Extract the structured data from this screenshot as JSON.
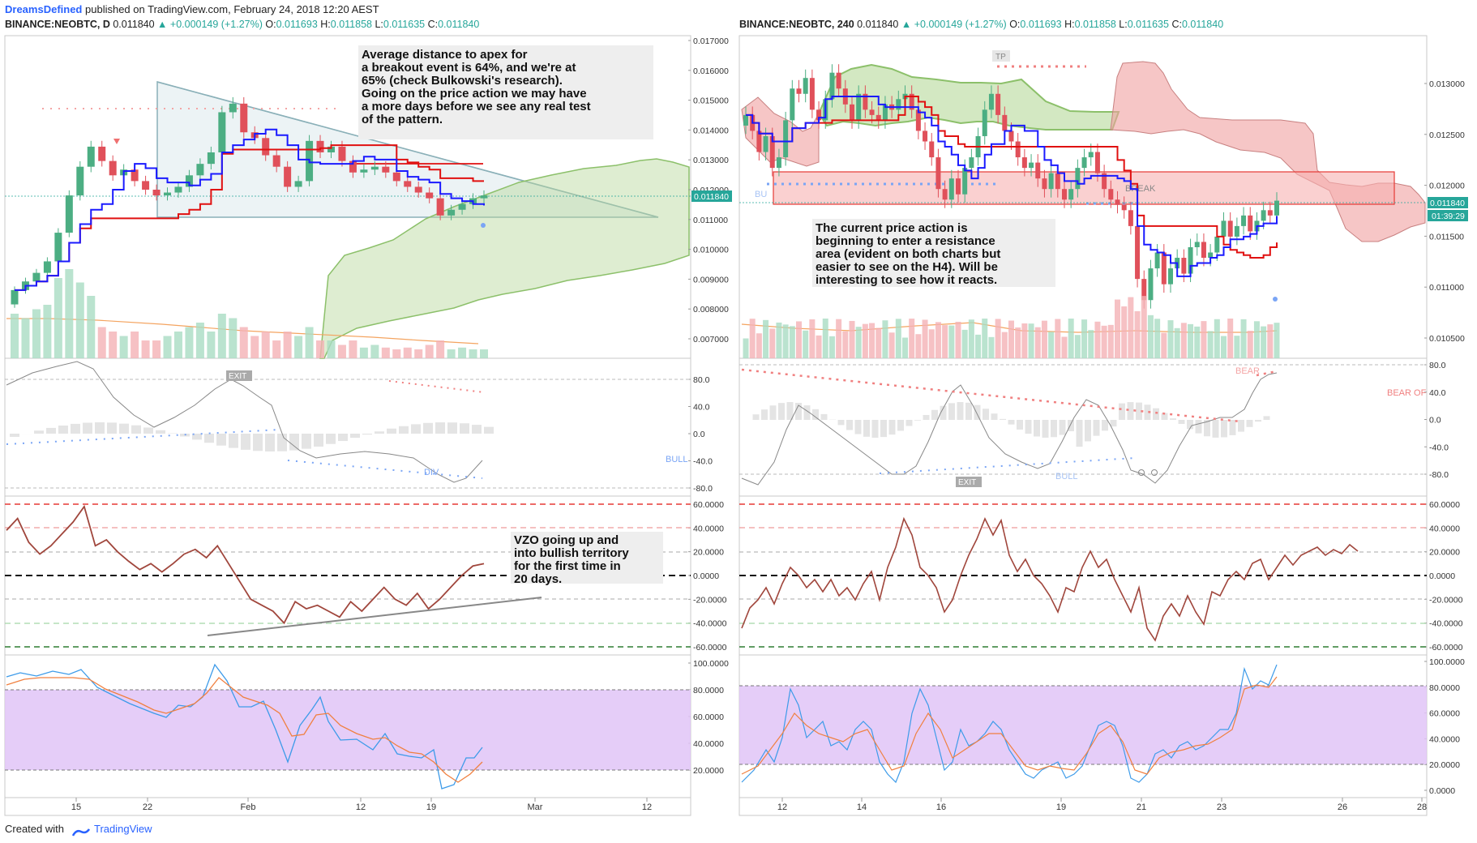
{
  "header": {
    "brand": "DreamsDefined",
    "published": "published on TradingView.com, February 24, 2018 12:20 AEST"
  },
  "left_chart": {
    "symbol": "BINANCE:NEOBTC, D",
    "last": "0.011840",
    "change": "▲ +0.000149 (+1.27%)",
    "o_label": "O:",
    "o": "0.011693",
    "h_label": "H:",
    "h": "0.011858",
    "l_label": "L:",
    "l": "0.011635",
    "c_label": "C:",
    "c": "0.011840",
    "price_ticks": [
      "0.017000",
      "0.016000",
      "0.015000",
      "0.014000",
      "0.013000",
      "0.012000",
      "0.011000",
      "0.010000",
      "0.009000",
      "0.008000",
      "0.007000"
    ],
    "price_label": "0.011840",
    "osc_ticks": [
      "80.0",
      "40.0",
      "0.0",
      "-40.0",
      "-80.0"
    ],
    "osc_labels": {
      "exit": "EXIT",
      "bull": "BULL",
      "div": "DIV"
    },
    "vzo_ticks": [
      "60.0000",
      "40.0000",
      "20.0000",
      "0.0000",
      "-20.0000",
      "-40.0000",
      "-60.0000"
    ],
    "rsi_ticks": [
      "100.0000",
      "80.0000",
      "60.0000",
      "40.0000",
      "20.0000"
    ],
    "x_ticks": [
      "15",
      "22",
      "Feb",
      "12",
      "19",
      "Mar",
      "12"
    ],
    "note1": [
      "Average distance to apex for",
      "a breakout event is 64%, and we're at",
      "65% (check Bulkowski's research).",
      "",
      "Going on the price action we may have",
      "a more days before we see any real test",
      "of the pattern."
    ],
    "note2": [
      "VZO going up and",
      "into bullish territory",
      "for the first time in",
      "20 days."
    ]
  },
  "right_chart": {
    "symbol": "BINANCE:NEOBTC, 240",
    "last": "0.011840",
    "change": "▲ +0.000149 (+1.27%)",
    "o_label": "O:",
    "o": "0.011693",
    "h_label": "H:",
    "h": "0.011858",
    "l_label": "L:",
    "l": "0.011635",
    "c_label": "C:",
    "c": "0.011840",
    "price_ticks": [
      "0.013000",
      "0.012500",
      "0.012000",
      "0.011500",
      "0.011000",
      "0.010500"
    ],
    "price_label": "0.011840",
    "countdown": "01:39:29",
    "annotations": {
      "tp": "TP",
      "break": "BREAK",
      "bu": "BU"
    },
    "osc_ticks": [
      "80.0",
      "40.0",
      "0.0",
      "-40.0",
      "-80.0"
    ],
    "osc_labels": {
      "bear": "BEAR",
      "bear_off": "BEAR OF",
      "exit": "EXIT",
      "bull": "BULL"
    },
    "vzo_ticks": [
      "60.0000",
      "40.0000",
      "20.0000",
      "0.0000",
      "-20.0000",
      "-40.0000",
      "-60.0000"
    ],
    "rsi_ticks": [
      "100.0000",
      "80.0000",
      "60.0000",
      "40.0000",
      "20.0000",
      "0.0000"
    ],
    "x_ticks": [
      "12",
      "14",
      "16",
      "19",
      "21",
      "23",
      "26",
      "28"
    ],
    "note": [
      "The current price action is",
      "beginning to enter a resistance",
      "area (evident on both charts but",
      "easier to see on the H4). Will be",
      "interesting to see how it reacts."
    ]
  },
  "footer": {
    "created": "Created with",
    "tv": "TradingView"
  },
  "colors": {
    "up": "#26a69a",
    "down": "#ef5350",
    "blue_line": "#1a1aff",
    "red_line": "#e01010",
    "cloud_green": "#b5d89a",
    "cloud_red": "#f0a0a0",
    "rsi_band": "#e1c4f7"
  },
  "chart_data": [
    {
      "type": "candlestick",
      "title": "BINANCE:NEOBTC, D",
      "ylim": [
        0.0068,
        0.0172
      ],
      "y_axis": "price",
      "x_ticks": [
        "15",
        "22",
        "Feb",
        "12",
        "19",
        "Mar",
        "12"
      ],
      "last_price": 0.01184,
      "candles_close_approx": [
        0.0085,
        0.0088,
        0.0091,
        0.0095,
        0.0105,
        0.0118,
        0.0128,
        0.0135,
        0.013,
        0.0125,
        0.0127,
        0.0123,
        0.012,
        0.0118,
        0.0119,
        0.0121,
        0.0125,
        0.0129,
        0.0133,
        0.0147,
        0.015,
        0.014,
        0.0138,
        0.0132,
        0.0128,
        0.0121,
        0.0123,
        0.0137,
        0.0133,
        0.0135,
        0.013,
        0.0126,
        0.0127,
        0.0128,
        0.0126,
        0.0123,
        0.0121,
        0.0119,
        0.0117,
        0.0111,
        0.0113,
        0.0115,
        0.0117,
        0.0118
      ],
      "indicators": [
        "Tenkan-sen (blue)",
        "Kijun-sen (red)",
        "Ichimoku cloud",
        "Volume",
        "Moving average"
      ],
      "oscillator": {
        "ticks": [
          80,
          40,
          0,
          -40,
          -80
        ]
      },
      "vzo": {
        "ticks": [
          60,
          40,
          20,
          0,
          -20,
          -40,
          -60
        ],
        "values_approx": [
          38,
          48,
          28,
          18,
          25,
          35,
          45,
          58,
          25,
          30,
          20,
          12,
          5,
          10,
          3,
          10,
          18,
          22,
          15,
          25,
          10,
          -5,
          -20,
          -25,
          -30,
          -40,
          -22,
          -28,
          -25,
          -30,
          -35,
          -22,
          -30,
          -20,
          -10,
          -20,
          -25,
          -15,
          -28,
          -20,
          -10,
          0,
          8,
          10
        ]
      },
      "rsi": {
        "ticks": [
          100,
          80,
          60,
          40,
          20
        ],
        "band": [
          20,
          80
        ]
      }
    },
    {
      "type": "candlestick",
      "title": "BINANCE:NEOBTC, 240",
      "ylim": [
        0.01035,
        0.0134
      ],
      "y_axis": "price",
      "x_ticks": [
        "12",
        "14",
        "16",
        "19",
        "21",
        "23",
        "26",
        "28"
      ],
      "last_price": 0.01184,
      "resistance_zone": [
        0.01182,
        0.01212
      ],
      "oscillator": {
        "ticks": [
          80,
          40,
          0,
          -40,
          -80
        ]
      },
      "vzo": {
        "ticks": [
          60,
          40,
          20,
          0,
          -20,
          -40,
          -60
        ]
      },
      "rsi": {
        "ticks": [
          100,
          80,
          60,
          40,
          20,
          0
        ],
        "band": [
          20,
          80
        ]
      }
    }
  ]
}
